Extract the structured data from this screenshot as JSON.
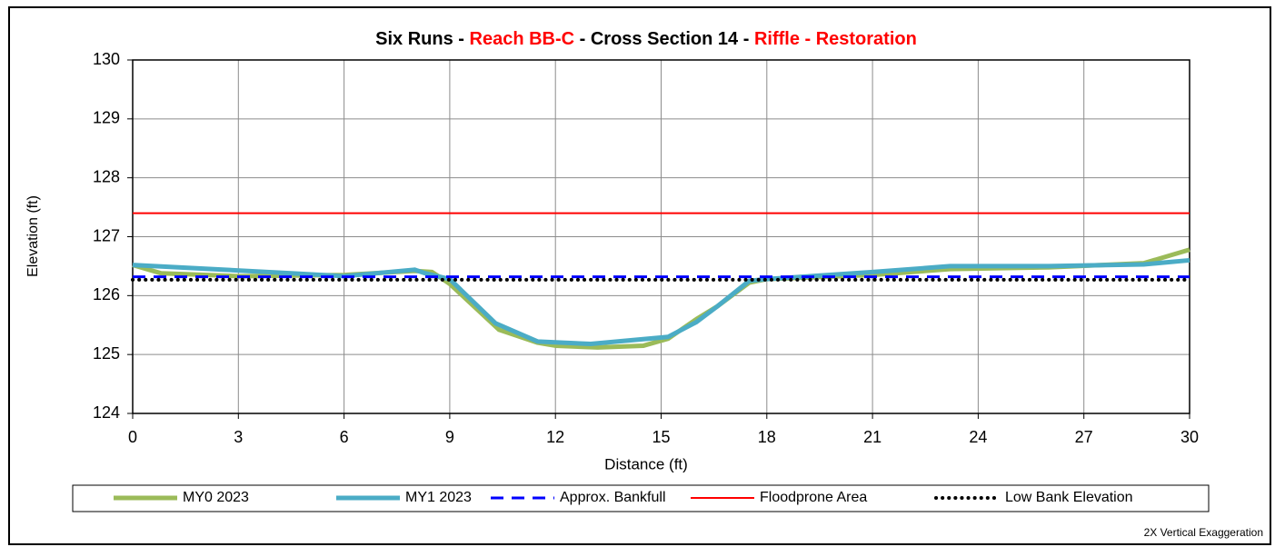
{
  "chart_data": {
    "type": "line",
    "title_parts": [
      {
        "text": "Six Runs - ",
        "color": "#000000"
      },
      {
        "text": "Reach BB-C",
        "color": "#ff0000"
      },
      {
        "text": " - Cross Section 14 - ",
        "color": "#000000"
      },
      {
        "text": "Riffle - Restoration",
        "color": "#ff0000"
      }
    ],
    "x_label": "Distance (ft)",
    "y_label": "Elevation (ft)",
    "annotation": "2X Vertical Exaggeration",
    "xlim": [
      0,
      30
    ],
    "ylim": [
      124,
      130
    ],
    "xticks": [
      0,
      3,
      6,
      9,
      12,
      15,
      18,
      21,
      24,
      27,
      30
    ],
    "yticks": [
      124,
      125,
      126,
      127,
      128,
      129,
      130
    ],
    "grid": true,
    "legend": "bottom",
    "series": [
      {
        "name": "MY0 2023",
        "color": "#9bbb59",
        "x": [
          0,
          0.8,
          3,
          6,
          8,
          8.5,
          9,
          10.4,
          11.5,
          12,
          13.2,
          14.5,
          15.2,
          16,
          16.6,
          17.5,
          18,
          21,
          23.2,
          26,
          28.7,
          30
        ],
        "values": [
          126.52,
          126.38,
          126.33,
          126.35,
          126.42,
          126.4,
          126.2,
          125.42,
          125.2,
          125.15,
          125.12,
          125.15,
          125.27,
          125.6,
          125.82,
          126.22,
          126.28,
          126.35,
          126.45,
          126.48,
          126.55,
          126.78
        ]
      },
      {
        "name": "MY1 2023",
        "color": "#4bacc6",
        "x": [
          0,
          4.5,
          6,
          8,
          8.3,
          9,
          10.3,
          11.5,
          13,
          15.2,
          16,
          16.6,
          17.5,
          18,
          21,
          23.2,
          26,
          28.7,
          30
        ],
        "values": [
          126.52,
          126.38,
          126.33,
          126.44,
          126.38,
          126.28,
          125.53,
          125.22,
          125.18,
          125.3,
          125.55,
          125.82,
          126.25,
          126.28,
          126.4,
          126.5,
          126.5,
          126.53,
          126.6
        ]
      }
    ],
    "reference_lines": [
      {
        "name": "Approx. Bankfull",
        "color": "#0000ff",
        "value": 126.32,
        "style": "dashed"
      },
      {
        "name": "Floodprone Area",
        "color": "#ff0000",
        "value": 127.4,
        "style": "solid"
      },
      {
        "name": "Low Bank Elevation",
        "color": "#000000",
        "value": 126.27,
        "style": "dotted"
      }
    ]
  }
}
